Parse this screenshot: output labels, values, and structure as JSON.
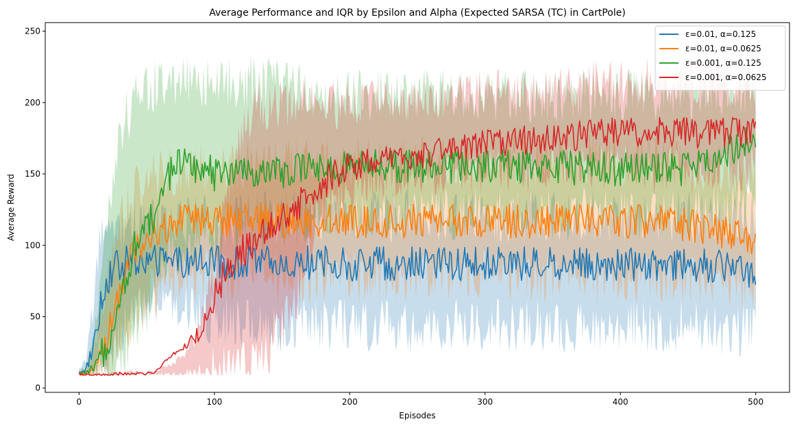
{
  "chart_data": {
    "type": "line",
    "title": "Average Performance and IQR by Epsilon and Alpha (Expected SARSA (TC) in CartPole)",
    "xlabel": "Episodes",
    "ylabel": "Average Reward",
    "xlim": [
      -25,
      525
    ],
    "ylim": [
      -3,
      256
    ],
    "x_ticks": [
      0,
      100,
      200,
      300,
      400,
      500
    ],
    "y_ticks": [
      0,
      50,
      100,
      150,
      200,
      250
    ],
    "legend_position": "top-right",
    "grid": false,
    "series": [
      {
        "name": "ε=0.01, α=0.125",
        "color": "#1f77b4",
        "x": [
          0,
          5,
          10,
          15,
          20,
          25,
          30,
          35,
          40,
          50,
          60,
          70,
          80,
          90,
          100,
          125,
          150,
          175,
          200,
          250,
          300,
          350,
          400,
          450,
          500
        ],
        "values": [
          11,
          13,
          27,
          55,
          75,
          82,
          86,
          88,
          89,
          89,
          89,
          89,
          88,
          89,
          88,
          88,
          87,
          88,
          87,
          87,
          87,
          87,
          87,
          87,
          82
        ],
        "iqr_low": [
          9,
          10,
          12,
          18,
          25,
          32,
          38,
          45,
          50,
          55,
          58,
          60,
          55,
          52,
          50,
          45,
          42,
          45,
          45,
          43,
          45,
          43,
          45,
          43,
          40
        ],
        "iqr_high": [
          13,
          20,
          55,
          95,
          110,
          112,
          115,
          116,
          117,
          117,
          118,
          118,
          118,
          118,
          118,
          118,
          120,
          120,
          120,
          120,
          120,
          120,
          120,
          120,
          115
        ]
      },
      {
        "name": "ε=0.01, α=0.0625",
        "color": "#ff7f0e",
        "x": [
          0,
          5,
          10,
          15,
          20,
          25,
          30,
          35,
          40,
          45,
          50,
          60,
          70,
          80,
          100,
          125,
          150,
          175,
          200,
          250,
          300,
          350,
          400,
          450,
          500
        ],
        "values": [
          10,
          10,
          13,
          20,
          30,
          50,
          68,
          85,
          95,
          100,
          103,
          110,
          115,
          117,
          118,
          118,
          117,
          118,
          117,
          117,
          117,
          117,
          117,
          115,
          104
        ],
        "iqr_low": [
          9,
          9,
          9,
          10,
          12,
          18,
          25,
          35,
          45,
          55,
          62,
          70,
          75,
          78,
          80,
          78,
          78,
          78,
          78,
          80,
          80,
          78,
          78,
          76,
          70
        ],
        "iqr_high": [
          11,
          12,
          20,
          45,
          75,
          100,
          115,
          125,
          135,
          140,
          145,
          150,
          152,
          155,
          155,
          158,
          158,
          158,
          158,
          158,
          160,
          160,
          160,
          158,
          150
        ]
      },
      {
        "name": "ε=0.001, α=0.125",
        "color": "#2ca02c",
        "x": [
          0,
          5,
          10,
          15,
          20,
          25,
          30,
          35,
          40,
          45,
          50,
          55,
          60,
          70,
          80,
          100,
          125,
          150,
          175,
          200,
          250,
          300,
          350,
          400,
          450,
          500
        ],
        "values": [
          10,
          11,
          13,
          18,
          30,
          45,
          60,
          80,
          95,
          110,
          115,
          120,
          140,
          155,
          158,
          150,
          150,
          152,
          153,
          155,
          155,
          155,
          155,
          153,
          153,
          175
        ],
        "iqr_low": [
          9,
          9,
          9,
          10,
          12,
          15,
          18,
          25,
          35,
          45,
          55,
          65,
          80,
          95,
          100,
          105,
          110,
          115,
          118,
          120,
          122,
          122,
          122,
          122,
          122,
          130
        ],
        "iqr_high": [
          11,
          15,
          30,
          60,
          110,
          150,
          175,
          190,
          200,
          208,
          210,
          212,
          214,
          215,
          215,
          215,
          215,
          215,
          210,
          205,
          205,
          205,
          205,
          205,
          205,
          210
        ]
      },
      {
        "name": "ε=0.001, α=0.0625",
        "color": "#d62728",
        "x": [
          0,
          10,
          20,
          30,
          40,
          50,
          55,
          60,
          65,
          70,
          75,
          80,
          85,
          90,
          95,
          100,
          105,
          110,
          115,
          120,
          125,
          130,
          140,
          150,
          160,
          175,
          200,
          225,
          250,
          275,
          300,
          350,
          400,
          450,
          500
        ],
        "values": [
          10,
          9,
          9,
          10,
          10,
          10,
          11,
          15,
          20,
          25,
          27,
          30,
          35,
          40,
          50,
          62,
          75,
          85,
          92,
          95,
          98,
          102,
          112,
          120,
          128,
          140,
          155,
          160,
          162,
          168,
          172,
          175,
          180,
          178,
          180
        ],
        "iqr_low": [
          9,
          9,
          9,
          9,
          9,
          9,
          9,
          9,
          9,
          9,
          9,
          9,
          9,
          9,
          9,
          10,
          10,
          11,
          12,
          13,
          15,
          18,
          25,
          40,
          60,
          120,
          140,
          145,
          148,
          150,
          152,
          152,
          155,
          152,
          155
        ],
        "iqr_high": [
          11,
          10,
          10,
          11,
          11,
          11,
          12,
          13,
          15,
          18,
          22,
          28,
          35,
          45,
          60,
          80,
          110,
          140,
          165,
          180,
          190,
          195,
          200,
          200,
          200,
          200,
          200,
          200,
          200,
          205,
          208,
          210,
          215,
          215,
          215
        ]
      }
    ]
  }
}
